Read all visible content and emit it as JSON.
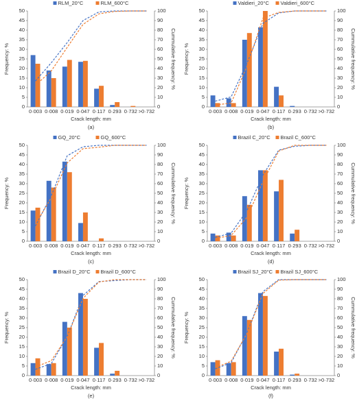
{
  "chart_data": [
    {
      "type": "bar",
      "caption": "(a)",
      "x_label": "Crack length: mm",
      "y_label": "Frequency: %",
      "y2_label": "Cummulative frequency: %",
      "categories": [
        "0·003",
        "0·008",
        "0·019",
        "0·047",
        "0·117",
        "0·293",
        "0·732",
        ">0·732"
      ],
      "ylim": [
        0,
        50
      ],
      "yticks": [
        0,
        5,
        10,
        15,
        20,
        25,
        30,
        35,
        40,
        45,
        50
      ],
      "y2lim": [
        0,
        100
      ],
      "y2ticks": [
        0,
        10,
        20,
        30,
        40,
        50,
        60,
        70,
        80,
        90,
        100
      ],
      "series": [
        {
          "name": "RLM_20°C",
          "color": "#4472c4",
          "values": [
            27,
            19,
            21,
            23.5,
            9.5,
            1,
            0,
            0
          ]
        },
        {
          "name": "RLM_600°C",
          "color": "#ed7d31",
          "values": [
            22.5,
            15,
            24.5,
            24,
            11,
            2.5,
            0.5,
            0
          ]
        },
        {
          "type": "line",
          "axis": "y2",
          "color": "#4472c4",
          "values": [
            27,
            46,
            67,
            90,
            99,
            100,
            100,
            100
          ]
        },
        {
          "type": "line",
          "axis": "y2",
          "color": "#ed7d31",
          "values": [
            22.5,
            37.5,
            62,
            86,
            97,
            99.5,
            100,
            100
          ]
        }
      ]
    },
    {
      "type": "bar",
      "caption": "(b)",
      "x_label": "Crack length: mm",
      "y_label": "Frequency: %",
      "y2_label": "Cummulative frequency: %",
      "categories": [
        "0·003",
        "0·008",
        "0·019",
        "0·047",
        "0·117",
        "0·293",
        "0·732",
        ">0·732"
      ],
      "ylim": [
        0,
        50
      ],
      "yticks": [
        0,
        5,
        10,
        15,
        20,
        25,
        30,
        35,
        40,
        45,
        50
      ],
      "y2lim": [
        0,
        100
      ],
      "y2ticks": [
        0,
        10,
        20,
        30,
        40,
        50,
        60,
        70,
        80,
        90,
        100
      ],
      "series": [
        {
          "name": "Valdieri_20°C",
          "color": "#4472c4",
          "values": [
            6,
            4.5,
            35,
            41.5,
            10.5,
            0.5,
            0,
            0
          ]
        },
        {
          "name": "Valdieri_600°C",
          "color": "#ed7d31",
          "values": [
            2,
            2,
            38.5,
            50,
            6,
            0,
            0,
            0
          ]
        },
        {
          "type": "line",
          "axis": "y2",
          "color": "#4472c4",
          "values": [
            6,
            10.5,
            45.5,
            87,
            98,
            100,
            100,
            100
          ]
        },
        {
          "type": "line",
          "axis": "y2",
          "color": "#ed7d31",
          "values": [
            2,
            4,
            42.5,
            92.5,
            98.5,
            100,
            100,
            100
          ]
        }
      ]
    },
    {
      "type": "bar",
      "caption": "(c)",
      "x_label": "Crack length: mm",
      "y_label": "Frequency: %",
      "y2_label": "Cummulative frequency: %",
      "categories": [
        "0·003",
        "0·008",
        "0·019",
        "0·047",
        "0·117",
        "0·293",
        "0·732",
        ">0·732"
      ],
      "ylim": [
        0,
        50
      ],
      "yticks": [
        0,
        5,
        10,
        15,
        20,
        25,
        30,
        35,
        40,
        45,
        50
      ],
      "y2lim": [
        0,
        100
      ],
      "y2ticks": [
        0,
        10,
        20,
        30,
        40,
        50,
        60,
        70,
        80,
        90,
        100
      ],
      "series": [
        {
          "name": "GQ_20°C",
          "color": "#4472c4",
          "values": [
            16,
            31.5,
            41.5,
            9.5,
            0,
            0,
            0,
            0
          ]
        },
        {
          "name": "GQ_600°C",
          "color": "#ed7d31",
          "values": [
            17.5,
            28,
            36,
            15,
            1.5,
            0,
            0,
            0
          ]
        },
        {
          "type": "line",
          "axis": "y2",
          "color": "#4472c4",
          "values": [
            16,
            47.5,
            89,
            98.5,
            100,
            100,
            100,
            100
          ]
        },
        {
          "type": "line",
          "axis": "y2",
          "color": "#ed7d31",
          "values": [
            17.5,
            45.5,
            81.5,
            96.5,
            98,
            100,
            100,
            100
          ]
        }
      ]
    },
    {
      "type": "bar",
      "caption": "(d)",
      "x_label": "Crack length: mm",
      "y_label": "Frequency: %",
      "y2_label": "Cummulative frequency: %",
      "categories": [
        "0·003",
        "0·008",
        "0·019",
        "0·047",
        "0·117",
        "0·293",
        "0·732",
        ">0·732"
      ],
      "ylim": [
        0,
        50
      ],
      "yticks": [
        0,
        5,
        10,
        15,
        20,
        25,
        30,
        35,
        40,
        45,
        50
      ],
      "y2lim": [
        0,
        100
      ],
      "y2ticks": [
        0,
        10,
        20,
        30,
        40,
        50,
        60,
        70,
        80,
        90,
        100
      ],
      "series": [
        {
          "name": "Brazil C_20°C",
          "color": "#4472c4",
          "values": [
            4,
            4.5,
            23.5,
            37,
            26,
            4,
            0,
            0
          ]
        },
        {
          "name": "Brazil C_600°C",
          "color": "#ed7d31",
          "values": [
            3,
            3,
            19,
            37,
            32,
            6,
            0,
            0
          ]
        },
        {
          "type": "line",
          "axis": "y2",
          "color": "#4472c4",
          "values": [
            4,
            8.5,
            32,
            69,
            95,
            99,
            100,
            100
          ]
        },
        {
          "type": "line",
          "axis": "y2",
          "color": "#ed7d31",
          "values": [
            3,
            6,
            25,
            62,
            94,
            100,
            100,
            100
          ]
        }
      ]
    },
    {
      "type": "bar",
      "caption": "(e)",
      "x_label": "Crack length: mm",
      "y_label": "Frequency: %",
      "y2_label": "Cummulative frequency: %",
      "categories": [
        "0·003",
        "0·008",
        "0·019",
        "0·047",
        "0·117",
        "0·293",
        "0·732",
        ">0·732"
      ],
      "ylim": [
        0,
        50
      ],
      "yticks": [
        0,
        5,
        10,
        15,
        20,
        25,
        30,
        35,
        40,
        45,
        50
      ],
      "y2lim": [
        0,
        100
      ],
      "y2ticks": [
        0,
        10,
        20,
        30,
        40,
        50,
        60,
        70,
        80,
        90,
        100
      ],
      "series": [
        {
          "name": "Brazil D_20°C",
          "color": "#4472c4",
          "values": [
            6.5,
            6,
            28,
            43,
            14.5,
            1,
            0,
            0
          ]
        },
        {
          "name": "Brazil D_600°C",
          "color": "#ed7d31",
          "values": [
            9,
            6.5,
            25,
            40,
            17,
            2.5,
            0,
            0
          ]
        },
        {
          "type": "line",
          "axis": "y2",
          "color": "#4472c4",
          "values": [
            6.5,
            12.5,
            40.5,
            83.5,
            98,
            99,
            100,
            100
          ]
        },
        {
          "type": "line",
          "axis": "y2",
          "color": "#ed7d31",
          "values": [
            9,
            15.5,
            40.5,
            80.5,
            97.5,
            100,
            100,
            100
          ]
        }
      ]
    },
    {
      "type": "bar",
      "caption": "(f)",
      "x_label": "Crack length: mm",
      "y_label": "Frequency: %",
      "y2_label": "Cummulative frequency: %",
      "categories": [
        "0·003",
        "0·008",
        "0·019",
        "0·047",
        "0·117",
        "0·293",
        "0·732",
        ">0·732"
      ],
      "ylim": [
        0,
        50
      ],
      "yticks": [
        0,
        5,
        10,
        15,
        20,
        25,
        30,
        35,
        40,
        45,
        50
      ],
      "y2lim": [
        0,
        100
      ],
      "y2ticks": [
        0,
        10,
        20,
        30,
        40,
        50,
        60,
        70,
        80,
        90,
        100
      ],
      "series": [
        {
          "name": "Brazil SJ_20°C",
          "color": "#4472c4",
          "values": [
            7,
            6.5,
            31,
            43,
            12.5,
            0.5,
            0,
            0
          ]
        },
        {
          "name": "Brazil SJ_600°C",
          "color": "#ed7d31",
          "values": [
            8,
            7,
            29,
            41.5,
            14,
            1,
            0,
            0
          ]
        },
        {
          "type": "line",
          "axis": "y2",
          "color": "#4472c4",
          "values": [
            7,
            13.5,
            44.5,
            87.5,
            100,
            100,
            100,
            100
          ]
        },
        {
          "type": "line",
          "axis": "y2",
          "color": "#ed7d31",
          "values": [
            8,
            15,
            44,
            85.5,
            99.5,
            100,
            100,
            100
          ]
        }
      ]
    }
  ]
}
